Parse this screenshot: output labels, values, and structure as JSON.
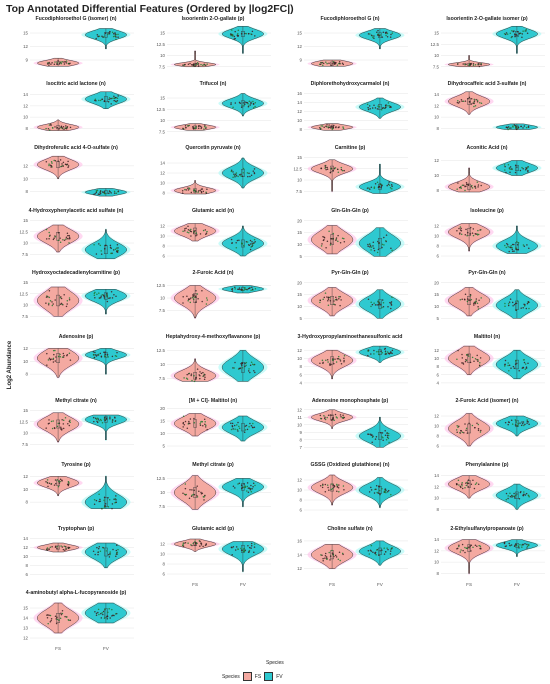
{
  "title": "Top Annotated Differential Features (Ordered by |log2FC|)",
  "ylabel": "Log2 Abundance",
  "xlabel": "Species",
  "legend": {
    "title": "Species",
    "items": [
      {
        "label": "FS",
        "color": "#f4a9a1"
      },
      {
        "label": "FV",
        "color": "#2ec9d0"
      }
    ]
  },
  "colors": {
    "FS": "#f4a9a1",
    "FV": "#2ec9d0",
    "FS_glow": "#ffb8e6",
    "FV_glow": "#9ff7f4"
  },
  "chart_data": {
    "type": "violin",
    "categories": [
      "FS",
      "FV"
    ],
    "panels": [
      {
        "title": "Fucodiphloroethol G (isomer) (n)",
        "ticks": [
          9,
          12,
          15
        ],
        "ylim": [
          7,
          17
        ],
        "groups": [
          {
            "center": 8.3,
            "spread": 0.6,
            "min": 7.6,
            "max": 9.4
          },
          {
            "center": 14.6,
            "spread": 0.9,
            "min": 11.5,
            "max": 16.0
          }
        ]
      },
      {
        "title": "Isoorientin 2-O-gallate (p)",
        "ticks": [
          7.5,
          10.0,
          12.5,
          15.0
        ],
        "ylim": [
          7,
          17
        ],
        "groups": [
          {
            "center": 8.0,
            "spread": 0.4,
            "min": 7.5,
            "max": 11.0
          },
          {
            "center": 14.8,
            "spread": 1.0,
            "min": 10.5,
            "max": 16.5
          }
        ]
      },
      {
        "title": "Fucodiphloroethol G (n)",
        "ticks": [
          9,
          12,
          15
        ],
        "ylim": [
          7,
          17
        ],
        "groups": [
          {
            "center": 8.2,
            "spread": 0.6,
            "min": 7.6,
            "max": 9.0
          },
          {
            "center": 14.5,
            "spread": 0.9,
            "min": 11.5,
            "max": 16.0
          }
        ]
      },
      {
        "title": "Isoorientin 2-O-gallate isomer (p)",
        "ticks": [
          7.5,
          10.0,
          12.5,
          15.0
        ],
        "ylim": [
          7,
          17
        ],
        "groups": [
          {
            "center": 8.0,
            "spread": 0.4,
            "min": 7.5,
            "max": 10.0
          },
          {
            "center": 14.8,
            "spread": 1.0,
            "min": 10.5,
            "max": 16.5
          }
        ]
      },
      {
        "title": "Isocitric acid lactone (n)",
        "ticks": [
          8,
          10,
          12,
          14
        ],
        "ylim": [
          7,
          15
        ],
        "groups": [
          {
            "center": 8.2,
            "spread": 0.5,
            "min": 7.6,
            "max": 9.5
          },
          {
            "center": 13.2,
            "spread": 0.8,
            "min": 11.5,
            "max": 14.5
          }
        ]
      },
      {
        "title": "Trifucol (n)",
        "ticks": [
          7.5,
          10.0,
          12.5,
          15.0
        ],
        "ylim": [
          7,
          17
        ],
        "groups": [
          {
            "center": 8.5,
            "spread": 0.5,
            "min": 7.8,
            "max": 9.3
          },
          {
            "center": 13.8,
            "spread": 1.0,
            "min": 11.0,
            "max": 16.0
          }
        ]
      },
      {
        "title": "Diphlorethohydroxycarmalol (n)",
        "ticks": [
          8,
          10,
          12,
          14,
          16
        ],
        "ylim": [
          7,
          17
        ],
        "groups": [
          {
            "center": 8.5,
            "spread": 0.5,
            "min": 7.8,
            "max": 9.3
          },
          {
            "center": 13.0,
            "spread": 1.0,
            "min": 10.5,
            "max": 15.0
          }
        ]
      },
      {
        "title": "Dihydrocaffeic acid 3-sulfate (n)",
        "ticks": [
          8,
          10,
          12,
          14
        ],
        "ylim": [
          7,
          15
        ],
        "groups": [
          {
            "center": 12.8,
            "spread": 0.9,
            "min": 10.5,
            "max": 14.5
          },
          {
            "center": 8.2,
            "spread": 0.4,
            "min": 7.8,
            "max": 8.8
          }
        ]
      },
      {
        "title": "Dihydroferulic acid 4-O-sulfate (n)",
        "ticks": [
          8,
          10,
          12
        ],
        "ylim": [
          7,
          14
        ],
        "groups": [
          {
            "center": 12.2,
            "spread": 0.8,
            "min": 10.0,
            "max": 13.5
          },
          {
            "center": 7.9,
            "spread": 0.4,
            "min": 7.3,
            "max": 8.5
          }
        ]
      },
      {
        "title": "Quercetin pyruvate (n)",
        "ticks": [
          8,
          10,
          12,
          14
        ],
        "ylim": [
          7,
          16
        ],
        "groups": [
          {
            "center": 8.5,
            "spread": 0.6,
            "min": 7.8,
            "max": 10.5
          },
          {
            "center": 12.0,
            "spread": 1.2,
            "min": 9.0,
            "max": 15.0
          }
        ]
      },
      {
        "title": "Carnitine (p)",
        "ticks": [
          7.5,
          10.0,
          12.5,
          15.0
        ],
        "ylim": [
          6,
          16
        ],
        "groups": [
          {
            "center": 12.5,
            "spread": 1.0,
            "min": 7.5,
            "max": 14.5
          },
          {
            "center": 8.5,
            "spread": 1.0,
            "min": 7.0,
            "max": 13.5
          }
        ]
      },
      {
        "title": "Aconitic Acid (n)",
        "ticks": [
          8,
          10,
          12
        ],
        "ylim": [
          7,
          13
        ],
        "groups": [
          {
            "center": 8.5,
            "spread": 0.6,
            "min": 7.8,
            "max": 11.0
          },
          {
            "center": 11.0,
            "spread": 0.6,
            "min": 10.0,
            "max": 12.0
          }
        ]
      },
      {
        "title": "4-Hydroxyphenylacetic acid sulfate (n)",
        "ticks": [
          7.5,
          10.0,
          12.5,
          15.0
        ],
        "ylim": [
          6,
          16
        ],
        "groups": [
          {
            "center": 11.5,
            "spread": 1.5,
            "min": 8.0,
            "max": 14.0
          },
          {
            "center": 8.5,
            "spread": 1.5,
            "min": 6.5,
            "max": 13.0
          }
        ]
      },
      {
        "title": "Glutamic acid (n)",
        "ticks": [
          6,
          8,
          10,
          12
        ],
        "ylim": [
          5,
          14
        ],
        "groups": [
          {
            "center": 11.0,
            "spread": 1.0,
            "min": 9.0,
            "max": 12.5
          },
          {
            "center": 8.5,
            "spread": 1.2,
            "min": 6.0,
            "max": 12.0
          }
        ]
      },
      {
        "title": "Gln-Gln-Gln (p)",
        "ticks": [
          5,
          10,
          15,
          20
        ],
        "ylim": [
          3,
          22
        ],
        "groups": [
          {
            "center": 12.0,
            "spread": 3.5,
            "min": 6.0,
            "max": 18.0
          },
          {
            "center": 10.5,
            "spread": 3.5,
            "min": 5.0,
            "max": 17.0
          }
        ]
      },
      {
        "title": "Isoleucine (p)",
        "ticks": [
          6,
          8,
          10,
          12
        ],
        "ylim": [
          5,
          14
        ],
        "groups": [
          {
            "center": 10.8,
            "spread": 1.2,
            "min": 7.0,
            "max": 12.5
          },
          {
            "center": 8.0,
            "spread": 1.2,
            "min": 6.5,
            "max": 12.0
          }
        ]
      },
      {
        "title": "Hydroxyoctadecadienylcarnitine (p)",
        "ticks": [
          7.5,
          10.0,
          12.5,
          15.0
        ],
        "ylim": [
          6,
          16
        ],
        "groups": [
          {
            "center": 11.0,
            "spread": 2.0,
            "min": 7.5,
            "max": 14.0
          },
          {
            "center": 12.0,
            "spread": 1.2,
            "min": 8.0,
            "max": 13.5
          }
        ]
      },
      {
        "title": "2-Furoic Acid (n)",
        "ticks": [
          7.5,
          10.0,
          12.5
        ],
        "ylim": [
          5,
          14
        ],
        "groups": [
          {
            "center": 10.0,
            "spread": 1.5,
            "min": 6.0,
            "max": 12.5
          },
          {
            "center": 11.8,
            "spread": 0.5,
            "min": 11.0,
            "max": 12.5
          }
        ]
      },
      {
        "title": "Pyr-Gln-Gln (p)",
        "ticks": [
          5,
          10,
          15,
          20
        ],
        "ylim": [
          3,
          22
        ],
        "groups": [
          {
            "center": 12.5,
            "spread": 3.0,
            "min": 6.0,
            "max": 18.0
          },
          {
            "center": 11.0,
            "spread": 3.0,
            "min": 5.0,
            "max": 17.0
          }
        ]
      },
      {
        "title": "Pyr-Gln-Gln (n)",
        "ticks": [
          5,
          10,
          15,
          20
        ],
        "ylim": [
          3,
          22
        ],
        "groups": [
          {
            "center": 12.5,
            "spread": 3.0,
            "min": 6.0,
            "max": 18.0
          },
          {
            "center": 10.5,
            "spread": 3.0,
            "min": 5.0,
            "max": 17.0
          }
        ]
      },
      {
        "title": "Adenosine (p)",
        "ticks": [
          8,
          10,
          12
        ],
        "ylim": [
          6,
          13
        ],
        "groups": [
          {
            "center": 10.5,
            "spread": 1.2,
            "min": 7.5,
            "max": 12.0
          },
          {
            "center": 11.0,
            "spread": 0.6,
            "min": 8.0,
            "max": 12.0
          }
        ]
      },
      {
        "title": "Heptahydroxy-4-methoxyflavanone (p)",
        "ticks": [
          7.5,
          10.0,
          12.5
        ],
        "ylim": [
          6,
          14
        ],
        "groups": [
          {
            "center": 8.0,
            "spread": 1.0,
            "min": 7.0,
            "max": 11.0
          },
          {
            "center": 9.5,
            "spread": 1.5,
            "min": 7.0,
            "max": 12.5
          }
        ]
      },
      {
        "title": "3-Hydroxypropylaminoethanesulfonic acid",
        "ticks": [
          4,
          6,
          8,
          10,
          12
        ],
        "ylim": [
          3,
          14
        ],
        "groups": [
          {
            "center": 9.5,
            "spread": 1.5,
            "min": 5.0,
            "max": 12.0
          },
          {
            "center": 11.5,
            "spread": 1.0,
            "min": 9.0,
            "max": 13.0
          }
        ]
      },
      {
        "title": "Maltitol (n)",
        "ticks": [
          4,
          6,
          8,
          10,
          12
        ],
        "ylim": [
          3,
          14
        ],
        "groups": [
          {
            "center": 10.0,
            "spread": 1.8,
            "min": 6.0,
            "max": 13.0
          },
          {
            "center": 8.5,
            "spread": 1.8,
            "min": 5.0,
            "max": 12.0
          }
        ]
      },
      {
        "title": "Methyl citrate (n)",
        "ticks": [
          7.5,
          10.0,
          12.5,
          15.0
        ],
        "ylim": [
          6,
          16
        ],
        "groups": [
          {
            "center": 12.0,
            "spread": 1.5,
            "min": 8.0,
            "max": 14.5
          },
          {
            "center": 13.0,
            "spread": 1.0,
            "min": 8.5,
            "max": 14.0
          }
        ]
      },
      {
        "title": "[M + Cl]- Maltitol (n)",
        "ticks": [
          5,
          10,
          15,
          20
        ],
        "ylim": [
          3,
          21
        ],
        "groups": [
          {
            "center": 14.0,
            "spread": 2.5,
            "min": 9.0,
            "max": 18.0
          },
          {
            "center": 12.5,
            "spread": 2.5,
            "min": 7.0,
            "max": 17.0
          }
        ]
      },
      {
        "title": "Adenosine monophosphate (p)",
        "ticks": [
          7,
          8,
          9,
          10,
          11,
          12
        ],
        "ylim": [
          6.5,
          12.5
        ],
        "groups": [
          {
            "center": 11.0,
            "spread": 0.5,
            "min": 9.5,
            "max": 12.0
          },
          {
            "center": 8.5,
            "spread": 0.8,
            "min": 7.0,
            "max": 11.0
          }
        ]
      },
      {
        "title": "2-Furoic Acid (isomer) (n)",
        "ticks": [
          6,
          8,
          10,
          12
        ],
        "ylim": [
          5,
          14
        ],
        "groups": [
          {
            "center": 9.5,
            "spread": 1.5,
            "min": 6.0,
            "max": 12.5
          },
          {
            "center": 10.5,
            "spread": 1.0,
            "min": 8.0,
            "max": 12.0
          }
        ]
      },
      {
        "title": "Tyrosine (p)",
        "ticks": [
          8,
          10,
          12
        ],
        "ylim": [
          6,
          13
        ],
        "groups": [
          {
            "center": 11.0,
            "spread": 0.7,
            "min": 9.0,
            "max": 12.0
          },
          {
            "center": 8.0,
            "spread": 1.2,
            "min": 7.0,
            "max": 12.0
          }
        ]
      },
      {
        "title": "Methyl citrate (p)",
        "ticks": [
          7.5,
          10.0,
          12.5
        ],
        "ylim": [
          6,
          14
        ],
        "groups": [
          {
            "center": 10.0,
            "spread": 1.5,
            "min": 7.0,
            "max": 13.0
          },
          {
            "center": 11.0,
            "spread": 1.0,
            "min": 7.5,
            "max": 12.5
          }
        ]
      },
      {
        "title": "GSSG (Oxidized glutathione) (n)",
        "ticks": [
          6,
          8,
          10,
          12
        ],
        "ylim": [
          5,
          14
        ],
        "groups": [
          {
            "center": 10.5,
            "spread": 1.2,
            "min": 7.0,
            "max": 13.0
          },
          {
            "center": 10.0,
            "spread": 1.2,
            "min": 6.5,
            "max": 12.5
          }
        ]
      },
      {
        "title": "Phenylalanine (p)",
        "ticks": [
          8,
          10,
          12,
          14
        ],
        "ylim": [
          7,
          15
        ],
        "groups": [
          {
            "center": 12.5,
            "spread": 1.0,
            "min": 10.0,
            "max": 14.0
          },
          {
            "center": 10.5,
            "spread": 1.0,
            "min": 8.0,
            "max": 12.5
          }
        ]
      },
      {
        "title": "Tryptophan (p)",
        "ticks": [
          6,
          8,
          10,
          12,
          14
        ],
        "ylim": [
          5,
          15
        ],
        "groups": [
          {
            "center": 12.0,
            "spread": 0.6,
            "min": 11.0,
            "max": 13.0
          },
          {
            "center": 11.0,
            "spread": 1.5,
            "min": 7.5,
            "max": 13.0
          }
        ]
      },
      {
        "title": "Glutamic acid (p)",
        "ticks": [
          6,
          8,
          10,
          12
        ],
        "ylim": [
          5,
          14
        ],
        "groups": [
          {
            "center": 12.0,
            "spread": 0.6,
            "min": 10.5,
            "max": 13.0
          },
          {
            "center": 11.0,
            "spread": 1.2,
            "min": 6.5,
            "max": 12.5
          }
        ]
      },
      {
        "title": "Choline sulfate (n)",
        "ticks": [
          12,
          14,
          16
        ],
        "ylim": [
          10.5,
          17
        ],
        "groups": [
          {
            "center": 14.0,
            "spread": 1.0,
            "min": 12.0,
            "max": 15.5
          },
          {
            "center": 14.5,
            "spread": 0.8,
            "min": 12.5,
            "max": 16.0
          }
        ]
      },
      {
        "title": "2-Ethylsulfanylpropanoate (p)",
        "ticks": [
          8,
          10,
          12,
          14
        ],
        "ylim": [
          7,
          15
        ],
        "groups": [
          {
            "center": 12.5,
            "spread": 1.0,
            "min": 8.0,
            "max": 14.0
          },
          {
            "center": 13.0,
            "spread": 0.6,
            "min": 11.0,
            "max": 14.0
          }
        ]
      },
      {
        "title": "4-aminobutyl alpha-L-fucopyranoside (p)",
        "ticks": [
          12,
          13,
          14,
          15
        ],
        "ylim": [
          11.5,
          16
        ],
        "groups": [
          {
            "center": 14.0,
            "spread": 0.8,
            "min": 12.5,
            "max": 15.5
          },
          {
            "center": 14.5,
            "spread": 0.7,
            "min": 13.5,
            "max": 15.5
          }
        ]
      }
    ]
  }
}
